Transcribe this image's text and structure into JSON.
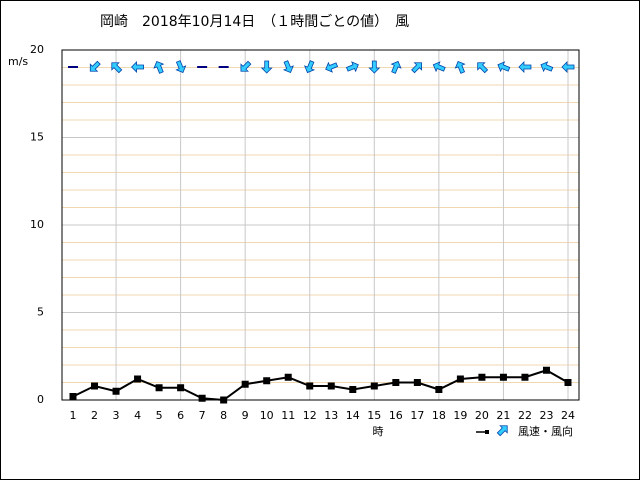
{
  "chart_data": {
    "type": "line",
    "title": "岡崎　2018年10月14日　（１時間ごとの値）　風",
    "y_label": "m/s",
    "x_label": "時",
    "legend_label": "風速・風向",
    "categories": [
      "1",
      "2",
      "3",
      "4",
      "5",
      "6",
      "7",
      "8",
      "9",
      "10",
      "11",
      "12",
      "13",
      "14",
      "15",
      "16",
      "17",
      "18",
      "19",
      "20",
      "21",
      "22",
      "23",
      "24"
    ],
    "series": [
      {
        "name": "風速",
        "color": "#000000",
        "values": [
          0.2,
          0.8,
          0.5,
          1.2,
          0.7,
          0.7,
          0.1,
          0.0,
          0.9,
          1.1,
          1.3,
          0.8,
          0.8,
          0.6,
          0.8,
          1.0,
          1.0,
          0.6,
          1.2,
          1.3,
          1.3,
          1.3,
          1.7,
          1.0
        ]
      }
    ],
    "directions": [
      null,
      225,
      315,
      270,
      337.5,
      157.5,
      null,
      null,
      225,
      180,
      157.5,
      202.5,
      247.5,
      67.5,
      180,
      22.5,
      45,
      292.5,
      337.5,
      315,
      292.5,
      270,
      292.5,
      270
    ],
    "arrow_color": "#33ccff",
    "ylim": [
      0,
      20
    ],
    "yticks": [
      0,
      5,
      10,
      15,
      20
    ],
    "y_minor_ticks": [
      1,
      2,
      3,
      4,
      6,
      7,
      8,
      9,
      11,
      12,
      13,
      14,
      16,
      17,
      18,
      19
    ],
    "grid": true
  }
}
